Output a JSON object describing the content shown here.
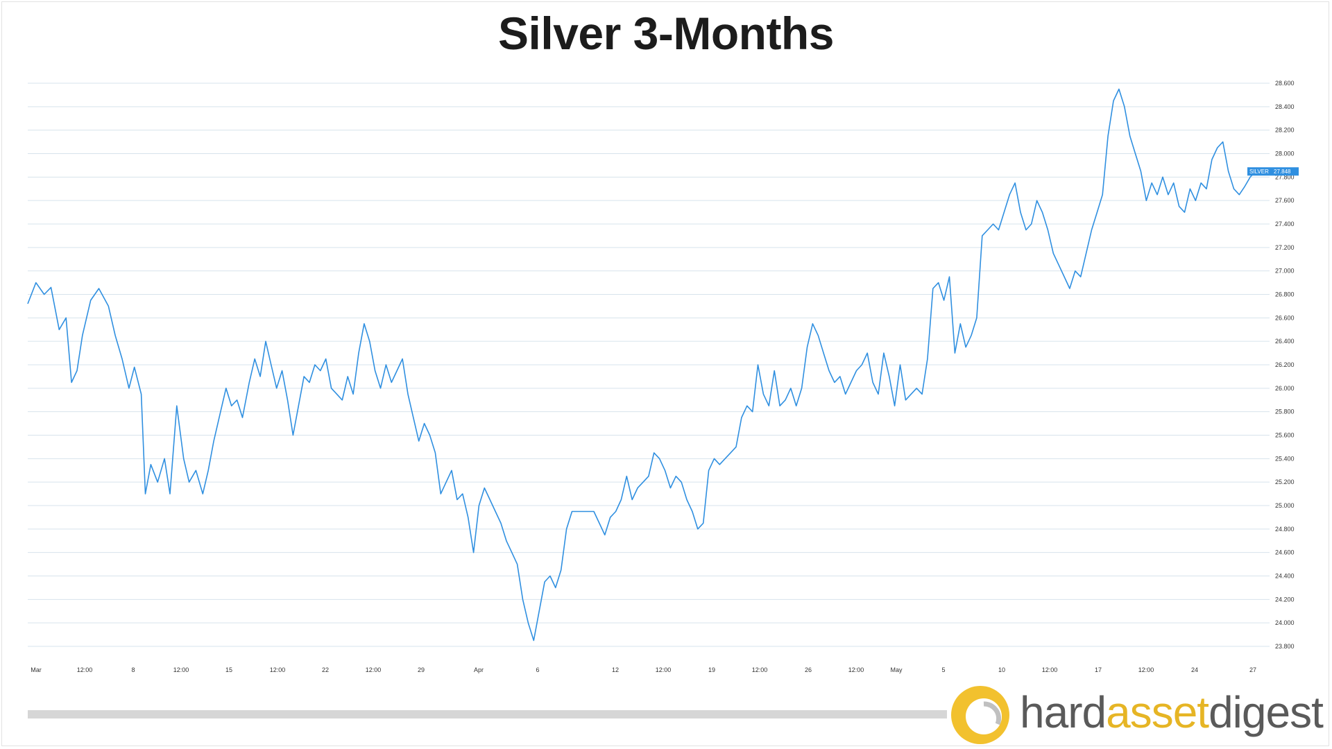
{
  "chart_data": {
    "type": "line",
    "title": "Silver 3-Months",
    "ylim": [
      23.8,
      28.6
    ],
    "y_ticks": [
      "23.800",
      "24.000",
      "24.200",
      "24.400",
      "24.600",
      "24.800",
      "25.000",
      "25.200",
      "25.400",
      "25.600",
      "25.800",
      "26.000",
      "26.200",
      "26.400",
      "26.600",
      "26.800",
      "27.000",
      "27.200",
      "27.400",
      "27.600",
      "27.800",
      "28.000",
      "28.200",
      "28.400",
      "28.600"
    ],
    "x_ticks": [
      "Mar",
      "12:00",
      "8",
      "12:00",
      "15",
      "12:00",
      "22",
      "12:00",
      "29",
      "Apr",
      "6",
      "12",
      "12:00",
      "19",
      "12:00",
      "26",
      "12:00",
      "May",
      "5",
      "10",
      "12:00",
      "17",
      "12:00",
      "24",
      "27"
    ],
    "last_value_label": {
      "name": "SILVER",
      "value": "27.848"
    },
    "series": [
      {
        "name": "SILVER",
        "color": "#2f8fe0",
        "points": [
          [
            0,
            26.72
          ],
          [
            0.6,
            26.9
          ],
          [
            1.2,
            26.8
          ],
          [
            1.7,
            26.86
          ],
          [
            2.3,
            26.5
          ],
          [
            2.8,
            26.6
          ],
          [
            3.2,
            26.05
          ],
          [
            3.6,
            26.15
          ],
          [
            4.0,
            26.45
          ],
          [
            4.6,
            26.75
          ],
          [
            5.2,
            26.85
          ],
          [
            5.9,
            26.7
          ],
          [
            6.4,
            26.45
          ],
          [
            6.9,
            26.25
          ],
          [
            7.4,
            26.0
          ],
          [
            7.8,
            26.18
          ],
          [
            8.3,
            25.95
          ],
          [
            8.6,
            25.1
          ],
          [
            9.0,
            25.35
          ],
          [
            9.5,
            25.2
          ],
          [
            10.0,
            25.4
          ],
          [
            10.4,
            25.1
          ],
          [
            10.9,
            25.85
          ],
          [
            11.4,
            25.4
          ],
          [
            11.8,
            25.2
          ],
          [
            12.3,
            25.3
          ],
          [
            12.8,
            25.1
          ],
          [
            13.2,
            25.3
          ],
          [
            13.6,
            25.55
          ],
          [
            14.1,
            25.8
          ],
          [
            14.5,
            26.0
          ],
          [
            14.9,
            25.85
          ],
          [
            15.3,
            25.9
          ],
          [
            15.7,
            25.75
          ],
          [
            16.2,
            26.05
          ],
          [
            16.6,
            26.25
          ],
          [
            17.0,
            26.1
          ],
          [
            17.4,
            26.4
          ],
          [
            17.8,
            26.2
          ],
          [
            18.2,
            26.0
          ],
          [
            18.6,
            26.15
          ],
          [
            19.0,
            25.9
          ],
          [
            19.4,
            25.6
          ],
          [
            19.8,
            25.85
          ],
          [
            20.2,
            26.1
          ],
          [
            20.6,
            26.05
          ],
          [
            21.0,
            26.2
          ],
          [
            21.4,
            26.15
          ],
          [
            21.8,
            26.25
          ],
          [
            22.2,
            26.0
          ],
          [
            22.6,
            25.95
          ],
          [
            23.0,
            25.9
          ],
          [
            23.4,
            26.1
          ],
          [
            23.8,
            25.95
          ],
          [
            24.2,
            26.3
          ],
          [
            24.6,
            26.55
          ],
          [
            25.0,
            26.4
          ],
          [
            25.4,
            26.15
          ],
          [
            25.8,
            26.0
          ],
          [
            26.2,
            26.2
          ],
          [
            26.6,
            26.05
          ],
          [
            27.0,
            26.15
          ],
          [
            27.4,
            26.25
          ],
          [
            27.8,
            25.95
          ],
          [
            28.2,
            25.75
          ],
          [
            28.6,
            25.55
          ],
          [
            29.0,
            25.7
          ],
          [
            29.4,
            25.6
          ],
          [
            29.8,
            25.45
          ],
          [
            30.2,
            25.1
          ],
          [
            30.6,
            25.2
          ],
          [
            31.0,
            25.3
          ],
          [
            31.4,
            25.05
          ],
          [
            31.8,
            25.1
          ],
          [
            32.2,
            24.9
          ],
          [
            32.6,
            24.6
          ],
          [
            33.0,
            25.0
          ],
          [
            33.4,
            25.15
          ],
          [
            33.8,
            25.05
          ],
          [
            34.2,
            24.95
          ],
          [
            34.6,
            24.85
          ],
          [
            35.0,
            24.7
          ],
          [
            35.4,
            24.6
          ],
          [
            35.8,
            24.5
          ],
          [
            36.2,
            24.2
          ],
          [
            36.6,
            24.0
          ],
          [
            37.0,
            23.85
          ],
          [
            37.4,
            24.1
          ],
          [
            37.8,
            24.35
          ],
          [
            38.2,
            24.4
          ],
          [
            38.6,
            24.3
          ],
          [
            39.0,
            24.45
          ],
          [
            39.4,
            24.8
          ],
          [
            39.8,
            24.95
          ],
          [
            40.2,
            24.95
          ],
          [
            40.6,
            24.95
          ],
          [
            41.0,
            24.95
          ],
          [
            41.4,
            24.95
          ],
          [
            41.8,
            24.85
          ],
          [
            42.2,
            24.75
          ],
          [
            42.6,
            24.9
          ],
          [
            43.0,
            24.95
          ],
          [
            43.4,
            25.05
          ],
          [
            43.8,
            25.25
          ],
          [
            44.2,
            25.05
          ],
          [
            44.6,
            25.15
          ],
          [
            45.0,
            25.2
          ],
          [
            45.4,
            25.25
          ],
          [
            45.8,
            25.45
          ],
          [
            46.2,
            25.4
          ],
          [
            46.6,
            25.3
          ],
          [
            47.0,
            25.15
          ],
          [
            47.4,
            25.25
          ],
          [
            47.8,
            25.2
          ],
          [
            48.2,
            25.05
          ],
          [
            48.6,
            24.95
          ],
          [
            49.0,
            24.8
          ],
          [
            49.4,
            24.85
          ],
          [
            49.8,
            25.3
          ],
          [
            50.2,
            25.4
          ],
          [
            50.6,
            25.35
          ],
          [
            51.0,
            25.4
          ],
          [
            51.4,
            25.45
          ],
          [
            51.8,
            25.5
          ],
          [
            52.2,
            25.75
          ],
          [
            52.6,
            25.85
          ],
          [
            53.0,
            25.8
          ],
          [
            53.4,
            26.2
          ],
          [
            53.8,
            25.95
          ],
          [
            54.2,
            25.85
          ],
          [
            54.6,
            26.15
          ],
          [
            55.0,
            25.85
          ],
          [
            55.4,
            25.9
          ],
          [
            55.8,
            26.0
          ],
          [
            56.2,
            25.85
          ],
          [
            56.6,
            26.0
          ],
          [
            57.0,
            26.35
          ],
          [
            57.4,
            26.55
          ],
          [
            57.8,
            26.45
          ],
          [
            58.2,
            26.3
          ],
          [
            58.6,
            26.15
          ],
          [
            59.0,
            26.05
          ],
          [
            59.4,
            26.1
          ],
          [
            59.8,
            25.95
          ],
          [
            60.2,
            26.05
          ],
          [
            60.6,
            26.15
          ],
          [
            61.0,
            26.2
          ],
          [
            61.4,
            26.3
          ],
          [
            61.8,
            26.05
          ],
          [
            62.2,
            25.95
          ],
          [
            62.6,
            26.3
          ],
          [
            63.0,
            26.1
          ],
          [
            63.4,
            25.85
          ],
          [
            63.8,
            26.2
          ],
          [
            64.2,
            25.9
          ],
          [
            64.6,
            25.95
          ],
          [
            65.0,
            26.0
          ],
          [
            65.4,
            25.95
          ],
          [
            65.8,
            26.25
          ],
          [
            66.2,
            26.85
          ],
          [
            66.6,
            26.9
          ],
          [
            67.0,
            26.75
          ],
          [
            67.4,
            26.95
          ],
          [
            67.8,
            26.3
          ],
          [
            68.2,
            26.55
          ],
          [
            68.6,
            26.35
          ],
          [
            69.0,
            26.45
          ],
          [
            69.4,
            26.6
          ],
          [
            69.8,
            27.3
          ],
          [
            70.2,
            27.35
          ],
          [
            70.6,
            27.4
          ],
          [
            71.0,
            27.35
          ],
          [
            71.4,
            27.5
          ],
          [
            71.8,
            27.65
          ],
          [
            72.2,
            27.75
          ],
          [
            72.6,
            27.5
          ],
          [
            73.0,
            27.35
          ],
          [
            73.4,
            27.4
          ],
          [
            73.8,
            27.6
          ],
          [
            74.2,
            27.5
          ],
          [
            74.6,
            27.35
          ],
          [
            75.0,
            27.15
          ],
          [
            75.4,
            27.05
          ],
          [
            75.8,
            26.95
          ],
          [
            76.2,
            26.85
          ],
          [
            76.6,
            27.0
          ],
          [
            77.0,
            26.95
          ],
          [
            77.4,
            27.15
          ],
          [
            77.8,
            27.35
          ],
          [
            78.2,
            27.5
          ],
          [
            78.6,
            27.65
          ],
          [
            79.0,
            28.15
          ],
          [
            79.4,
            28.45
          ],
          [
            79.8,
            28.55
          ],
          [
            80.2,
            28.4
          ],
          [
            80.6,
            28.15
          ],
          [
            81.0,
            28.0
          ],
          [
            81.4,
            27.85
          ],
          [
            81.8,
            27.6
          ],
          [
            82.2,
            27.75
          ],
          [
            82.6,
            27.65
          ],
          [
            83.0,
            27.8
          ],
          [
            83.4,
            27.65
          ],
          [
            83.8,
            27.75
          ],
          [
            84.2,
            27.55
          ],
          [
            84.6,
            27.5
          ],
          [
            85.0,
            27.7
          ],
          [
            85.4,
            27.6
          ],
          [
            85.8,
            27.75
          ],
          [
            86.2,
            27.7
          ],
          [
            86.6,
            27.95
          ],
          [
            87.0,
            28.05
          ],
          [
            87.4,
            28.1
          ],
          [
            87.8,
            27.85
          ],
          [
            88.2,
            27.7
          ],
          [
            88.6,
            27.65
          ],
          [
            89.0,
            27.72
          ],
          [
            89.4,
            27.8
          ],
          [
            89.8,
            27.848
          ]
        ]
      }
    ]
  },
  "logo": {
    "part1": "hard",
    "part2": "asset",
    "part3": "digest"
  }
}
